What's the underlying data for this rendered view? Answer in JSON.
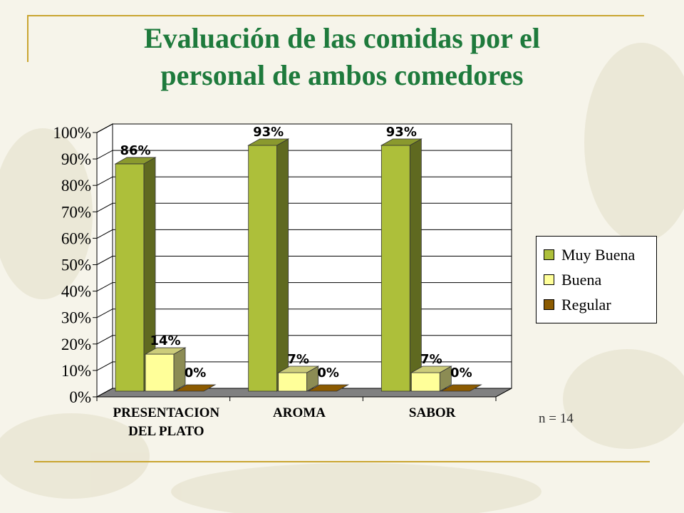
{
  "title_line1": "Evaluación de las comidas por el",
  "title_line2": "personal de ambos comedores",
  "note": "n = 14",
  "chart_data": {
    "type": "bar",
    "categories": [
      "PRESENTACION DEL PLATO",
      "AROMA",
      "SABOR"
    ],
    "category_lines": [
      [
        "PRESENTACION",
        "DEL PLATO"
      ],
      [
        "AROMA"
      ],
      [
        "SABOR"
      ]
    ],
    "series": [
      {
        "name": "Muy Buena",
        "values": [
          86,
          93,
          93
        ],
        "labels": [
          "86%",
          "93%",
          "93%"
        ],
        "color": "#adbf3a"
      },
      {
        "name": "Buena",
        "values": [
          14,
          7,
          7
        ],
        "labels": [
          "14%",
          "7%",
          "7%"
        ],
        "color": "#ffff99"
      },
      {
        "name": "Regular",
        "values": [
          0,
          0,
          0
        ],
        "labels": [
          "0%",
          "0%",
          "0%"
        ],
        "color": "#8b5a00"
      }
    ],
    "y_ticks": [
      "0%",
      "10%",
      "20%",
      "30%",
      "40%",
      "50%",
      "60%",
      "70%",
      "80%",
      "90%",
      "100%"
    ],
    "ylim": [
      0,
      100
    ],
    "grid": true,
    "legend_position": "right"
  }
}
